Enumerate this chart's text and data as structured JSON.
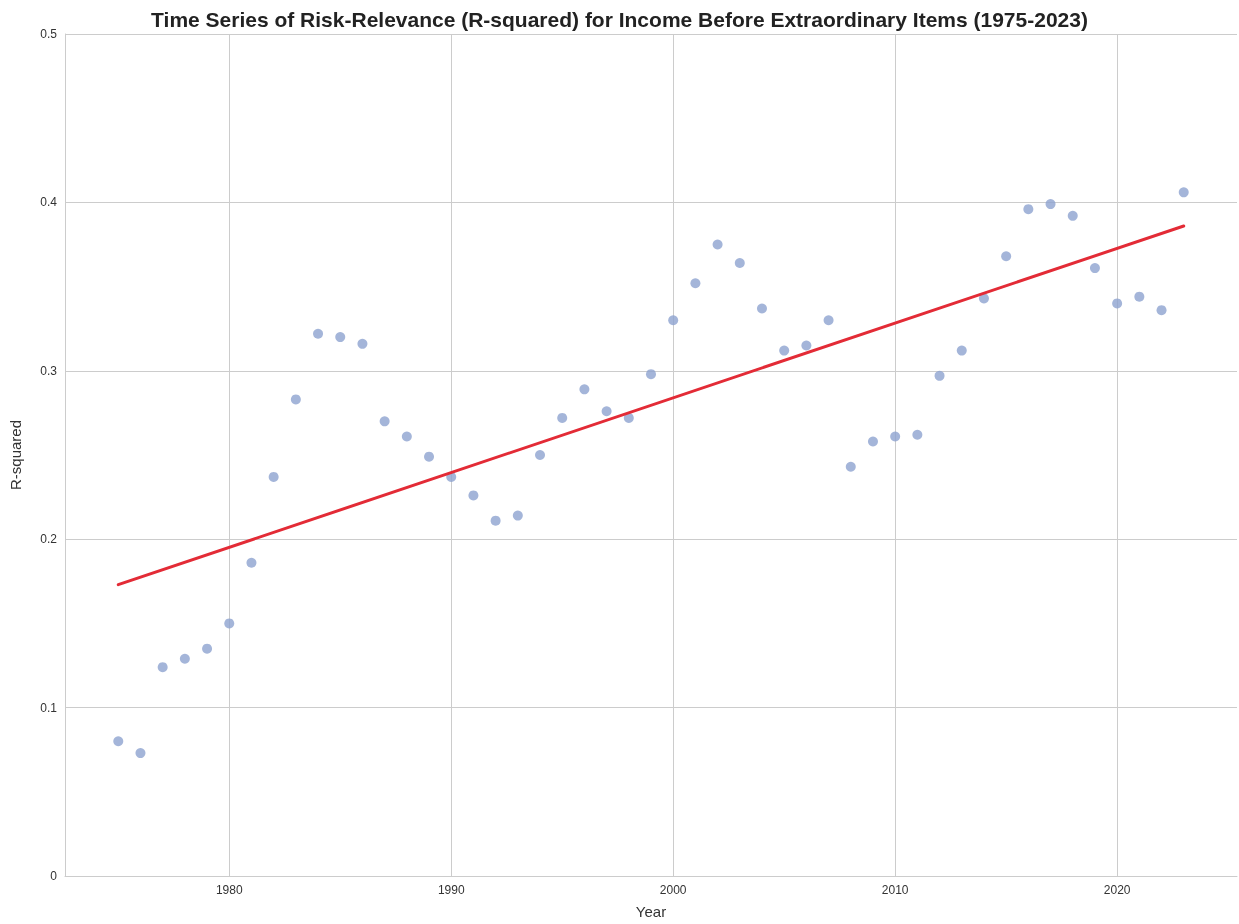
{
  "chart_data": {
    "type": "scatter",
    "title": "Time Series of Risk-Relevance (R-squared) for Income Before Extraordinary Items (1975-2023)",
    "xlabel": "Year",
    "ylabel": "R-squared",
    "series": [
      {
        "type": "scatter",
        "color": "#8da2cf",
        "marker": "circle",
        "x": [
          1975,
          1976,
          1977,
          1978,
          1979,
          1980,
          1981,
          1982,
          1983,
          1984,
          1985,
          1986,
          1987,
          1988,
          1989,
          1990,
          1991,
          1992,
          1993,
          1994,
          1995,
          1996,
          1997,
          1998,
          1999,
          2000,
          2001,
          2002,
          2003,
          2004,
          2005,
          2006,
          2007,
          2008,
          2009,
          2010,
          2011,
          2012,
          2013,
          2014,
          2015,
          2016,
          2017,
          2018,
          2019,
          2020,
          2021,
          2022,
          2023
        ],
        "values": [
          0.08,
          0.073,
          0.124,
          0.129,
          0.135,
          0.15,
          0.186,
          0.237,
          0.283,
          0.322,
          0.32,
          0.316,
          0.27,
          0.261,
          0.249,
          0.237,
          0.226,
          0.211,
          0.214,
          0.25,
          0.272,
          0.289,
          0.276,
          0.272,
          0.298,
          0.33,
          0.352,
          0.375,
          0.364,
          0.337,
          0.312,
          0.315,
          0.33,
          0.243,
          0.258,
          0.261,
          0.262,
          0.297,
          0.312,
          0.343,
          0.368,
          0.396,
          0.399,
          0.392,
          0.361,
          0.34,
          0.344,
          0.336,
          0.406
        ]
      },
      {
        "type": "line",
        "color": "#e32b36",
        "line_style": "solid",
        "marker": "none",
        "x": [
          1975,
          2023
        ],
        "values": [
          0.173,
          0.386
        ]
      }
    ],
    "xlim": [
      1972.6,
      2025.4
    ],
    "ylim": [
      0,
      0.5
    ],
    "xticks": [
      1980,
      1990,
      2000,
      2010,
      2020
    ],
    "yticks": [
      0,
      0.1,
      0.2,
      0.3,
      0.4,
      0.5
    ],
    "grid": true
  }
}
